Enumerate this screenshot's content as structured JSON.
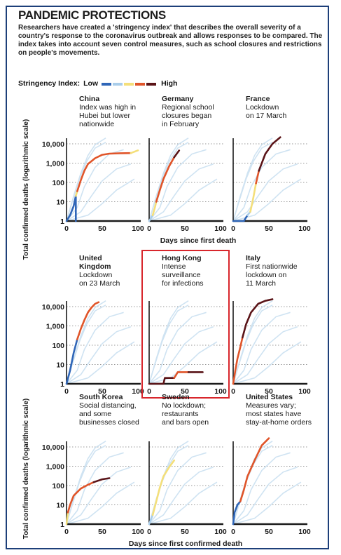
{
  "header": {
    "title": "PANDEMIC PROTECTIONS",
    "description": "Researchers have created a 'stringency index' that describes the overall severity of a country's response to the coronavirus outbreak and allows responses to be compared. The index takes into account seven control measures, such as school closures and restrictions on people's movements."
  },
  "legend": {
    "label": "Stringency Index:",
    "low": "Low",
    "high": "High",
    "colors": [
      "#2f66b8",
      "#a9cdea",
      "#f4df7a",
      "#e0552a",
      "#5a1418"
    ]
  },
  "colors": {
    "frame": "#1d3f79",
    "highlight": "#d8262c",
    "grid": "#9a9a9a",
    "background_lines": "#cfe3f2"
  },
  "chart_data": {
    "type": "line",
    "y_scale": "log",
    "ylim": [
      1,
      10000
    ],
    "xlim": [
      0,
      100
    ],
    "yticks": [
      "10,000",
      "1,000",
      "100",
      "10",
      "1"
    ],
    "xticks": [
      "0",
      "50",
      "100"
    ],
    "ylabel": "Total confirmed deaths (logarithmic scale)",
    "xlabel_middle": "Days since first death",
    "xlabel_bottom": "Days since first confirmed death",
    "panels": [
      {
        "name": "China",
        "note": [
          "Index was high in",
          "Hubei but lower",
          "nationwide"
        ],
        "segments": [
          {
            "color": "#2f66b8",
            "points": [
              [
                0,
                1
              ],
              [
                5,
                2
              ],
              [
                10,
                6
              ],
              [
                13,
                20
              ]
            ]
          },
          {
            "color": "#2f66b8",
            "points": [
              [
                13,
                20
              ],
              [
                13,
                1
              ]
            ]
          },
          {
            "color": "#f4df7a",
            "points": [
              [
                13,
                20
              ],
              [
                15,
                35
              ]
            ]
          },
          {
            "color": "#e0552a",
            "points": [
              [
                15,
                35
              ],
              [
                20,
                130
              ],
              [
                25,
                400
              ],
              [
                30,
                900
              ],
              [
                40,
                1800
              ],
              [
                50,
                2700
              ],
              [
                60,
                3100
              ],
              [
                75,
                3250
              ],
              [
                90,
                3300
              ]
            ]
          },
          {
            "color": "#f4df7a",
            "points": [
              [
                90,
                3300
              ],
              [
                100,
                4600
              ]
            ]
          }
        ]
      },
      {
        "name": "Germany",
        "note": [
          "Regional school",
          "closures began",
          "in February"
        ],
        "segments": [
          {
            "color": "#a9cdea",
            "points": [
              [
                0,
                1
              ],
              [
                5,
                2
              ]
            ]
          },
          {
            "color": "#f4df7a",
            "points": [
              [
                5,
                2
              ],
              [
                8,
                5
              ],
              [
                10,
                10
              ]
            ]
          },
          {
            "color": "#e0552a",
            "points": [
              [
                10,
                10
              ],
              [
                15,
                40
              ],
              [
                20,
                150
              ],
              [
                28,
                700
              ],
              [
                35,
                2000
              ]
            ]
          },
          {
            "color": "#5a1418",
            "points": [
              [
                35,
                2000
              ],
              [
                42,
                4500
              ]
            ]
          }
        ]
      },
      {
        "name": "France",
        "note": [
          "Lockdown",
          "on 17 March"
        ],
        "segments": [
          {
            "color": "#2f66b8",
            "points": [
              [
                0,
                1
              ],
              [
                5,
                1
              ],
              [
                15,
                1
              ],
              [
                20,
                2
              ]
            ]
          },
          {
            "color": "#a9cdea",
            "points": [
              [
                20,
                2
              ],
              [
                24,
                3
              ]
            ]
          },
          {
            "color": "#f4df7a",
            "points": [
              [
                24,
                3
              ],
              [
                28,
                15
              ],
              [
                32,
                90
              ]
            ]
          },
          {
            "color": "#e0552a",
            "points": [
              [
                32,
                90
              ],
              [
                36,
                400
              ]
            ]
          },
          {
            "color": "#5a1418",
            "points": [
              [
                36,
                400
              ],
              [
                45,
                3000
              ],
              [
                55,
                10000
              ],
              [
                66,
                22000
              ]
            ]
          }
        ]
      },
      {
        "name": "United Kingdom",
        "note": [
          "Lockdown",
          "on 23 March"
        ],
        "segments": [
          {
            "color": "#2f66b8",
            "points": [
              [
                0,
                1
              ],
              [
                5,
                5
              ],
              [
                10,
                40
              ],
              [
                15,
                200
              ]
            ]
          },
          {
            "color": "#e0552a",
            "points": [
              [
                15,
                200
              ],
              [
                20,
                700
              ],
              [
                25,
                2000
              ],
              [
                30,
                5000
              ],
              [
                35,
                9000
              ],
              [
                40,
                14000
              ],
              [
                45,
                17000
              ]
            ]
          }
        ]
      },
      {
        "name": "Hong Kong",
        "note": [
          "Intense",
          "surveillance",
          "for infections"
        ],
        "highlight": true,
        "segments": [
          {
            "color": "#5a1418",
            "points": [
              [
                0,
                1
              ],
              [
                20,
                1
              ],
              [
                22,
                2
              ],
              [
                35,
                2
              ]
            ]
          },
          {
            "color": "#e0552a",
            "points": [
              [
                35,
                2
              ],
              [
                38,
                3
              ],
              [
                40,
                4
              ],
              [
                55,
                4
              ]
            ]
          },
          {
            "color": "#5a1418",
            "points": [
              [
                55,
                4
              ],
              [
                75,
                4
              ]
            ]
          }
        ]
      },
      {
        "name": "Italy",
        "note": [
          "First nationwide",
          "lockdown on",
          "11 March"
        ],
        "segments": [
          {
            "color": "#e0552a",
            "points": [
              [
                0,
                1
              ],
              [
                3,
                5
              ],
              [
                6,
                20
              ],
              [
                10,
                80
              ],
              [
                13,
                250
              ]
            ]
          },
          {
            "color": "#5a1418",
            "points": [
              [
                13,
                250
              ],
              [
                18,
                1200
              ],
              [
                25,
                5000
              ],
              [
                35,
                14000
              ],
              [
                45,
                20000
              ],
              [
                55,
                24000
              ]
            ]
          }
        ]
      },
      {
        "name": "South Korea",
        "note": [
          "Social distancing,",
          "and some",
          "businesses closed"
        ],
        "segments": [
          {
            "color": "#f4df7a",
            "points": [
              [
                0,
                1
              ],
              [
                2,
                4
              ]
            ]
          },
          {
            "color": "#e0552a",
            "points": [
              [
                2,
                4
              ],
              [
                5,
                10
              ],
              [
                10,
                30
              ],
              [
                20,
                70
              ],
              [
                30,
                110
              ],
              [
                38,
                150
              ]
            ]
          },
          {
            "color": "#5a1418",
            "points": [
              [
                38,
                150
              ],
              [
                50,
                210
              ],
              [
                60,
                240
              ]
            ]
          }
        ]
      },
      {
        "name": "Sweden",
        "note": [
          "No lockdown;",
          "restaurants",
          "and bars open"
        ],
        "segments": [
          {
            "color": "#a9cdea",
            "points": [
              [
                0,
                1
              ],
              [
                5,
                3
              ]
            ]
          },
          {
            "color": "#f4df7a",
            "points": [
              [
                5,
                3
              ],
              [
                10,
                15
              ],
              [
                15,
                80
              ],
              [
                20,
                300
              ],
              [
                28,
                900
              ],
              [
                35,
                2000
              ]
            ]
          }
        ]
      },
      {
        "name": "United States",
        "note": [
          "Measures vary;",
          "most states have",
          "stay-at-home orders"
        ],
        "segments": [
          {
            "color": "#2f66b8",
            "points": [
              [
                0,
                1
              ],
              [
                2,
                4
              ],
              [
                6,
                10
              ],
              [
                10,
                15
              ]
            ]
          },
          {
            "color": "#e0552a",
            "points": [
              [
                10,
                15
              ],
              [
                15,
                60
              ],
              [
                20,
                300
              ],
              [
                30,
                2000
              ],
              [
                40,
                12000
              ],
              [
                50,
                40000
              ]
            ]
          }
        ]
      }
    ]
  }
}
